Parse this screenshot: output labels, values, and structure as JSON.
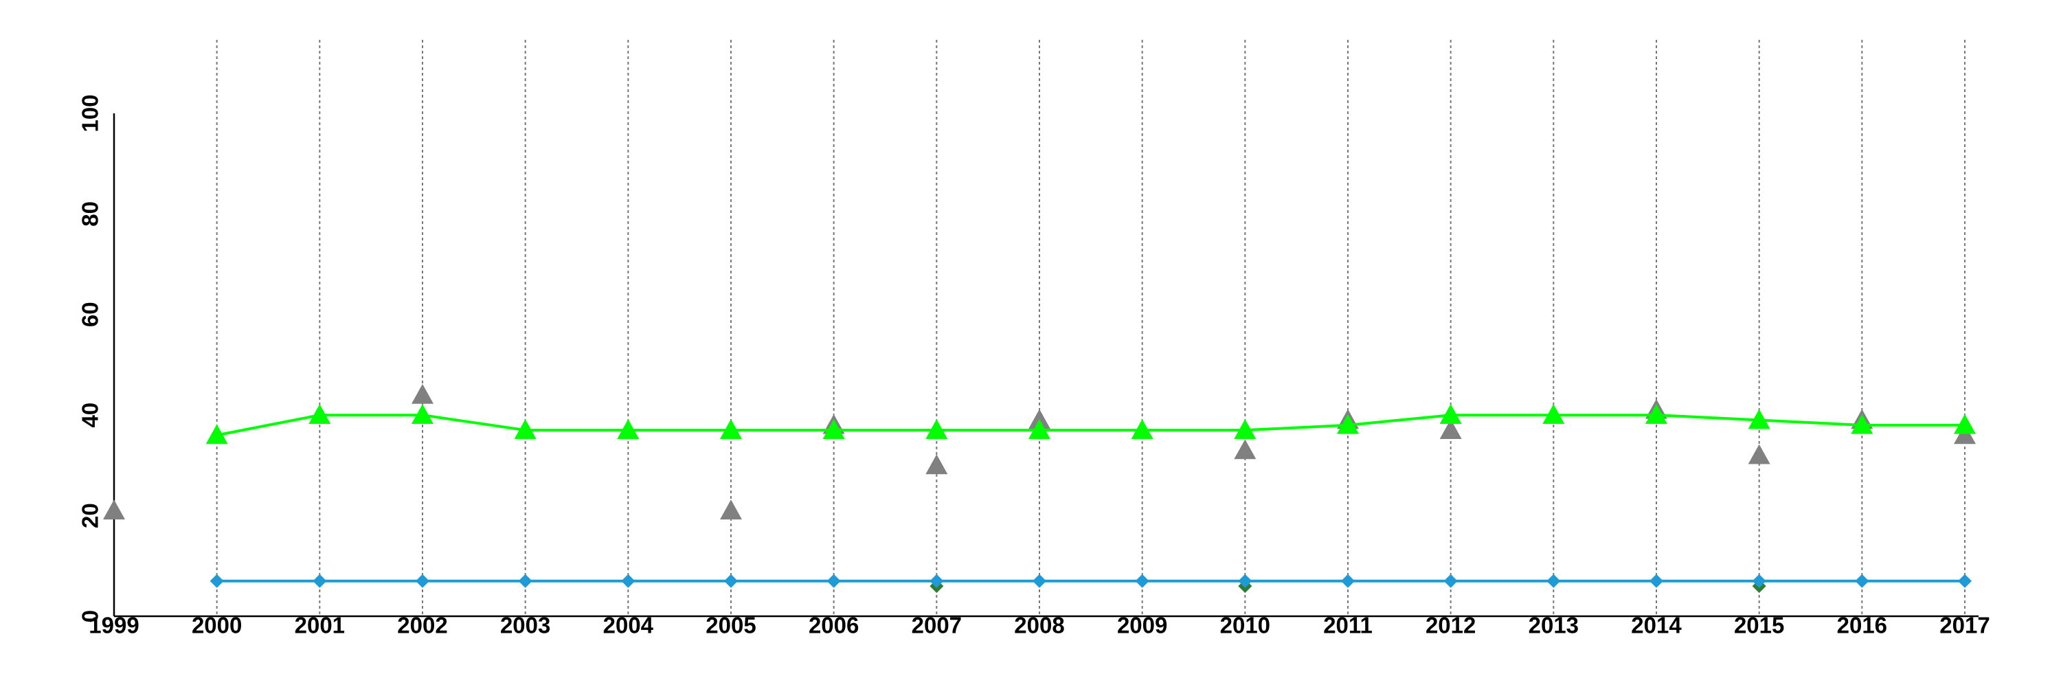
{
  "chart_data": {
    "type": "line",
    "x": [
      1999,
      2000,
      2001,
      2002,
      2003,
      2004,
      2005,
      2006,
      2007,
      2008,
      2009,
      2010,
      2011,
      2012,
      2013,
      2014,
      2015,
      2016,
      2017
    ],
    "xlim": [
      1999,
      2017
    ],
    "xticks": [
      1999,
      2000,
      2001,
      2002,
      2003,
      2004,
      2005,
      2006,
      2007,
      2008,
      2009,
      2010,
      2011,
      2012,
      2013,
      2014,
      2015,
      2016,
      2017
    ],
    "ylim": [
      0,
      100
    ],
    "yticks": [
      0,
      20,
      40,
      60,
      80,
      100
    ],
    "xgrid": true,
    "series": [
      {
        "color": "#808080",
        "marker": "triangle",
        "line": false,
        "values": [
          21,
          null,
          null,
          44,
          null,
          null,
          21,
          38,
          30,
          39,
          null,
          33,
          39,
          37,
          null,
          41,
          32,
          39,
          36
        ]
      },
      {
        "color": "#00ff00",
        "marker": "triangle",
        "line": true,
        "values": [
          null,
          36,
          40,
          40,
          37,
          37,
          37,
          37,
          37,
          37,
          37,
          37,
          38,
          40,
          40,
          40,
          39,
          38,
          38
        ]
      },
      {
        "color": "#2e7d32",
        "marker": "diamond",
        "line": false,
        "values": [
          null,
          null,
          null,
          null,
          null,
          null,
          null,
          null,
          6,
          null,
          null,
          6,
          null,
          null,
          null,
          null,
          6,
          null,
          null
        ]
      },
      {
        "color": "#1e9bd7",
        "marker": "diamond",
        "line": true,
        "values": [
          null,
          7,
          7,
          7,
          7,
          7,
          7,
          7,
          7,
          7,
          7,
          7,
          7,
          7,
          7,
          7,
          7,
          7,
          7
        ]
      }
    ]
  }
}
